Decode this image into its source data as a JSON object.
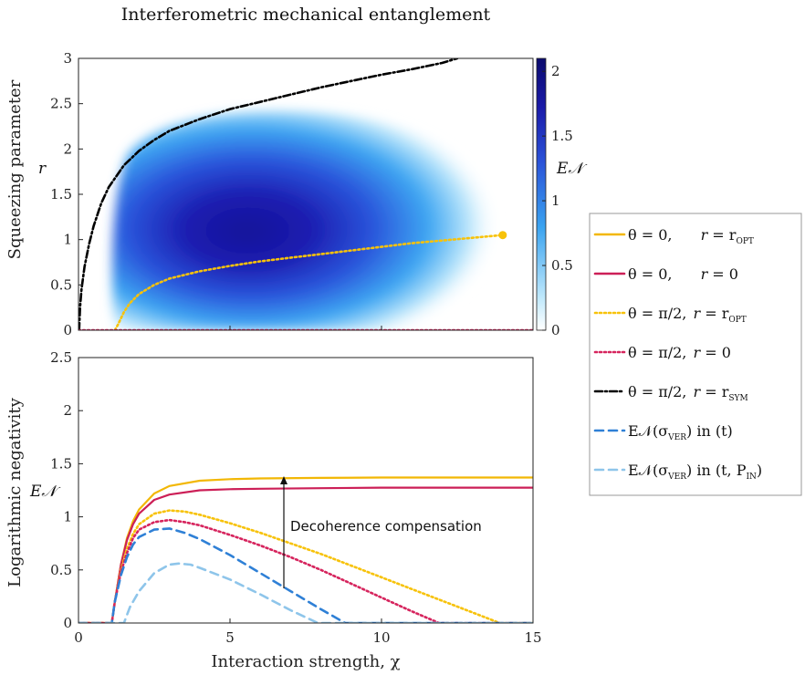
{
  "chart_data": [
    {
      "type": "heatmap",
      "title": "Interferometric mechanical entanglement",
      "ylabel": "Squeezing parameter",
      "ysymbol": "r",
      "xlim": [
        0,
        15
      ],
      "ylim": [
        0,
        3
      ],
      "yticks": [
        "0",
        "0.5",
        "1",
        "1.5",
        "2",
        "2.5",
        "3"
      ],
      "colorbar": {
        "label": "E𝒩",
        "range": [
          0,
          2.1
        ],
        "ticks": [
          "0",
          "0.5",
          "1",
          "1.5",
          "2"
        ],
        "colors": [
          "#ffffff",
          "#bfe8fb",
          "#3aa3f0",
          "#2a52d8",
          "#1a1aa8",
          "#0b0b6e"
        ]
      },
      "series": [
        {
          "name": "θ = π/2, r = r_SYM",
          "color": "#000000",
          "style": "dashdot",
          "x": [
            0.02,
            0.05,
            0.1,
            0.2,
            0.35,
            0.5,
            0.75,
            1.0,
            1.5,
            2.0,
            2.5,
            3.0,
            4.0,
            5.0,
            6.0,
            7.0,
            8.0,
            9.0,
            10.0,
            11.0,
            12.0,
            12.5
          ],
          "y": [
            0.0,
            0.25,
            0.45,
            0.7,
            0.95,
            1.15,
            1.4,
            1.58,
            1.82,
            1.98,
            2.1,
            2.2,
            2.33,
            2.44,
            2.52,
            2.6,
            2.68,
            2.75,
            2.82,
            2.88,
            2.95,
            3.0
          ]
        },
        {
          "name": "θ = π/2, r = r_OPT",
          "color": "#f7c20a",
          "style": "dotted",
          "x": [
            1.2,
            1.3,
            1.5,
            1.7,
            2.0,
            2.5,
            3.0,
            4.0,
            5.0,
            6.0,
            7.0,
            8.0,
            9.0,
            10.0,
            11.0,
            12.0,
            13.0,
            14.0
          ],
          "y": [
            0.0,
            0.06,
            0.2,
            0.3,
            0.4,
            0.5,
            0.57,
            0.65,
            0.71,
            0.76,
            0.8,
            0.84,
            0.88,
            0.92,
            0.96,
            0.99,
            1.02,
            1.05
          ]
        },
        {
          "name": "θ = π/2, r = 0",
          "color": "#d6245d",
          "style": "dotted",
          "x": [
            0,
            15
          ],
          "y": [
            0.0,
            0.0
          ]
        }
      ]
    },
    {
      "type": "line",
      "xlabel": "Interaction strength, χ",
      "ylabel": "Logarithmic negativity",
      "ysymbol": "E𝒩",
      "xlim": [
        0,
        15
      ],
      "ylim": [
        0,
        2.5
      ],
      "xticks": [
        "0",
        "5",
        "10",
        "15"
      ],
      "yticks": [
        "0",
        "0.5",
        "1",
        "1.5",
        "2",
        "2.5"
      ],
      "annotation": "Decoherence compensation",
      "series": [
        {
          "name": "θ = 0,     r = r_OPT",
          "color": "#f2b705",
          "style": "solid",
          "x": [
            0,
            1.1,
            1.2,
            1.4,
            1.6,
            1.8,
            2.0,
            2.5,
            3.0,
            4.0,
            5.0,
            6.0,
            8.0,
            10.0,
            12.0,
            15.0
          ],
          "y": [
            0,
            0,
            0.2,
            0.55,
            0.8,
            0.96,
            1.07,
            1.22,
            1.29,
            1.34,
            1.355,
            1.362,
            1.367,
            1.37,
            1.37,
            1.37
          ]
        },
        {
          "name": "θ = 0,     r = 0",
          "color": "#cc1f57",
          "style": "solid",
          "x": [
            0,
            1.1,
            1.2,
            1.4,
            1.6,
            1.8,
            2.0,
            2.5,
            3.0,
            4.0,
            5.0,
            6.0,
            8.0,
            10.0,
            12.0,
            15.0
          ],
          "y": [
            0,
            0,
            0.2,
            0.55,
            0.78,
            0.93,
            1.03,
            1.16,
            1.21,
            1.25,
            1.26,
            1.265,
            1.27,
            1.275,
            1.275,
            1.275
          ]
        },
        {
          "name": "θ = π/2, r = r_OPT",
          "color": "#f7c20a",
          "style": "dotted",
          "x": [
            0,
            1.1,
            1.2,
            1.4,
            1.6,
            1.8,
            2.0,
            2.5,
            3.0,
            3.5,
            4.0,
            5.0,
            6.0,
            7.0,
            8.0,
            9.0,
            10.0,
            11.0,
            12.0,
            13.0,
            13.9,
            15.0
          ],
          "y": [
            0,
            0,
            0.2,
            0.5,
            0.7,
            0.84,
            0.93,
            1.03,
            1.06,
            1.05,
            1.02,
            0.94,
            0.85,
            0.75,
            0.65,
            0.54,
            0.43,
            0.32,
            0.21,
            0.1,
            0,
            0
          ]
        },
        {
          "name": "θ = π/2, r = 0",
          "color": "#d6245d",
          "style": "dotted",
          "x": [
            0,
            1.1,
            1.2,
            1.4,
            1.6,
            1.8,
            2.0,
            2.5,
            3.0,
            3.5,
            4.0,
            5.0,
            6.0,
            7.0,
            8.0,
            9.0,
            10.0,
            11.0,
            11.9,
            15.0
          ],
          "y": [
            0,
            0,
            0.2,
            0.48,
            0.66,
            0.8,
            0.88,
            0.95,
            0.97,
            0.95,
            0.92,
            0.83,
            0.73,
            0.62,
            0.5,
            0.37,
            0.24,
            0.11,
            0,
            0
          ]
        },
        {
          "name": "E𝒩(σ_VER) in (t)",
          "color": "#2f80d6",
          "style": "dashed",
          "x": [
            0,
            1.1,
            1.2,
            1.4,
            1.6,
            1.8,
            2.0,
            2.5,
            3.0,
            3.5,
            4.0,
            5.0,
            6.0,
            7.0,
            8.0,
            8.8,
            15.0
          ],
          "y": [
            0,
            0,
            0.2,
            0.45,
            0.62,
            0.74,
            0.81,
            0.88,
            0.89,
            0.85,
            0.79,
            0.64,
            0.47,
            0.3,
            0.13,
            0,
            0
          ]
        },
        {
          "name": "E𝒩(σ_VER) in (t, P_IN)",
          "color": "#8ec5ea",
          "style": "dashed",
          "x": [
            0,
            1.5,
            1.7,
            2.0,
            2.5,
            3.0,
            3.3,
            3.7,
            4.0,
            5.0,
            6.0,
            7.0,
            7.9,
            15.0
          ],
          "y": [
            0,
            0,
            0.15,
            0.3,
            0.47,
            0.55,
            0.56,
            0.55,
            0.52,
            0.41,
            0.27,
            0.12,
            0,
            0
          ]
        }
      ]
    }
  ],
  "legend": [
    {
      "pre": "θ = 0,",
      "sym": "r",
      "post": "= r",
      "sub": "OPT",
      "color": "#f2b705",
      "style": "solid"
    },
    {
      "pre": "θ = 0,",
      "sym": "r",
      "post": "= 0",
      "sub": "",
      "color": "#cc1f57",
      "style": "solid"
    },
    {
      "pre": "θ = π/2,",
      "sym": "r",
      "post": "= r",
      "sub": "OPT",
      "color": "#f7c20a",
      "style": "dotted"
    },
    {
      "pre": "θ = π/2,",
      "sym": "r",
      "post": "= 0",
      "sub": "",
      "color": "#d6245d",
      "style": "dotted"
    },
    {
      "pre": "θ = π/2,",
      "sym": "r",
      "post": "= r",
      "sub": "SYM",
      "color": "#000000",
      "style": "dashdot"
    },
    {
      "pre": "E𝒩(σ",
      "sym": "",
      "post": ") in (t)",
      "sub": "VER",
      "color": "#2f80d6",
      "style": "dashed"
    },
    {
      "pre": "E𝒩(σ",
      "sym": "",
      "post": ") in (t, P",
      "sub": "VER",
      "sub2": "IN",
      "tail": ")",
      "color": "#8ec5ea",
      "style": "dashed"
    }
  ]
}
